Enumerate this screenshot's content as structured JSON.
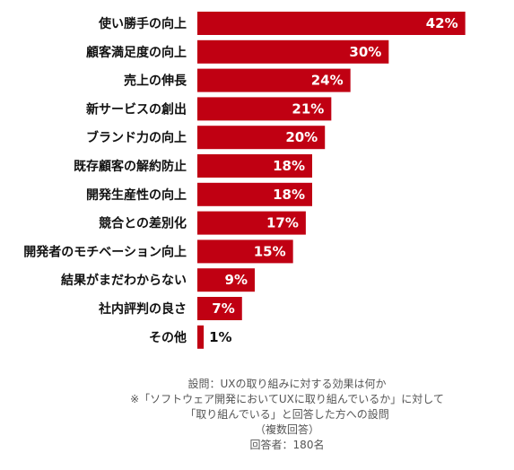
{
  "chart_data": {
    "type": "bar",
    "orientation": "horizontal",
    "categories": [
      "使い勝手の向上",
      "顧客満足度の向上",
      "売上の伸長",
      "新サービスの創出",
      "ブランド力の向上",
      "既存顧客の解約防止",
      "開発生産性の向上",
      "競合との差別化",
      "開発者のモチベーション向上",
      "結果がまだわからない",
      "社内評判の良さ",
      "その他"
    ],
    "values": [
      42,
      30,
      24,
      21,
      20,
      18,
      18,
      17,
      15,
      9,
      7,
      1
    ],
    "value_labels": [
      "42%",
      "30%",
      "24%",
      "21%",
      "20%",
      "18%",
      "18%",
      "17%",
      "15%",
      "9%",
      "7%",
      "1%"
    ],
    "xlim": [
      0,
      45
    ],
    "unit": "%",
    "bar_color": "#c00012",
    "grid": false,
    "legend": "none"
  },
  "notes": {
    "line1": "設問：UXの取り組みに対する効果は何か",
    "line2": "※「ソフトウェア開発においてUXに取り組んでいるか」に対して",
    "line3": "「取り組んでいる」と回答した方への設問",
    "line4": "（複数回答）",
    "line5": "回答者：180名"
  }
}
